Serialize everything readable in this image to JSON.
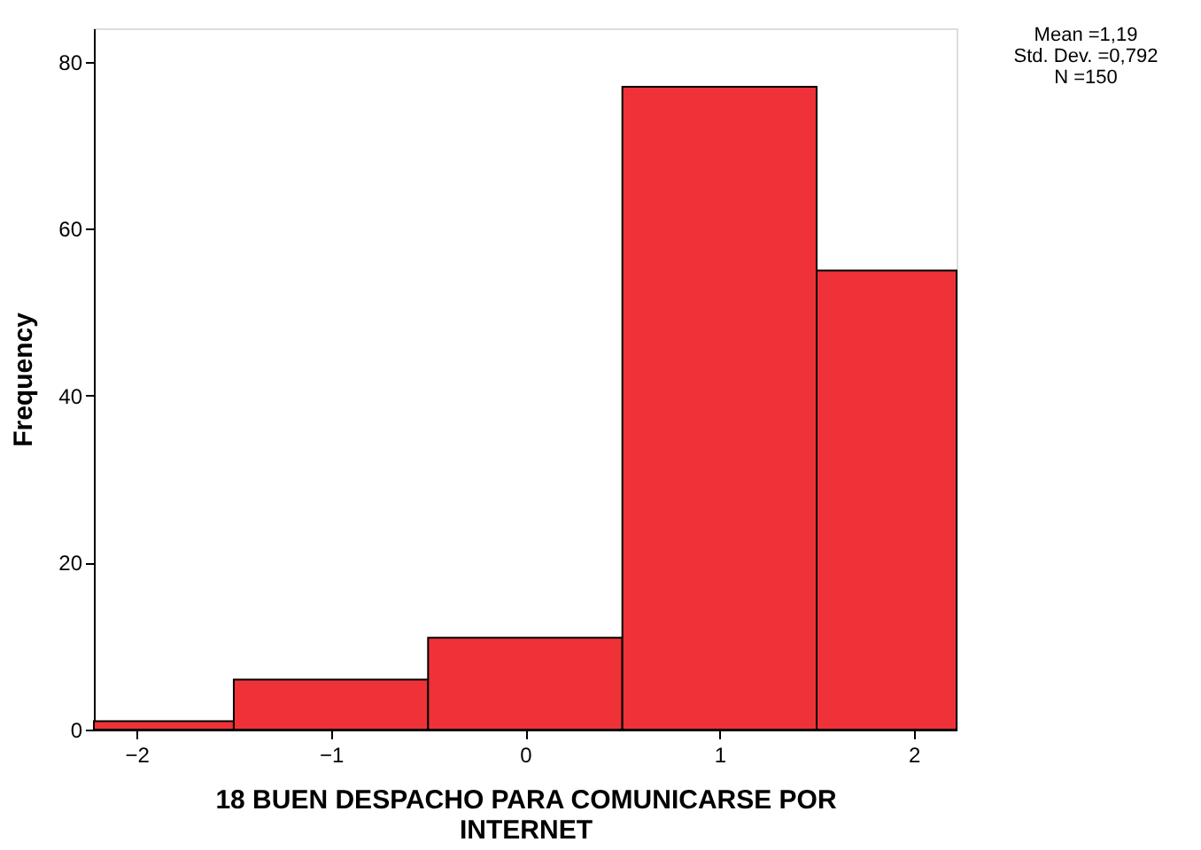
{
  "chart_data": {
    "type": "histogram",
    "bins": [
      -2.22,
      -1.5,
      -0.5,
      0.5,
      1.5,
      2.22
    ],
    "values": [
      1,
      6,
      11,
      77,
      55
    ],
    "color": "#ef3238",
    "xlabel": "18 BUEN DESPACHO PARA COMUNICARSE POR INTERNET",
    "ylabel": "Frequency",
    "xlim": [
      -2.22,
      2.22
    ],
    "xticks": [
      -2,
      -1,
      0,
      1,
      2
    ],
    "ylim": [
      0,
      84
    ],
    "yticks": [
      0,
      20,
      40,
      60,
      80
    ],
    "grid": false,
    "annotations": [
      "Mean =1,19",
      "Std. Dev. =0,792",
      "N =150"
    ]
  }
}
